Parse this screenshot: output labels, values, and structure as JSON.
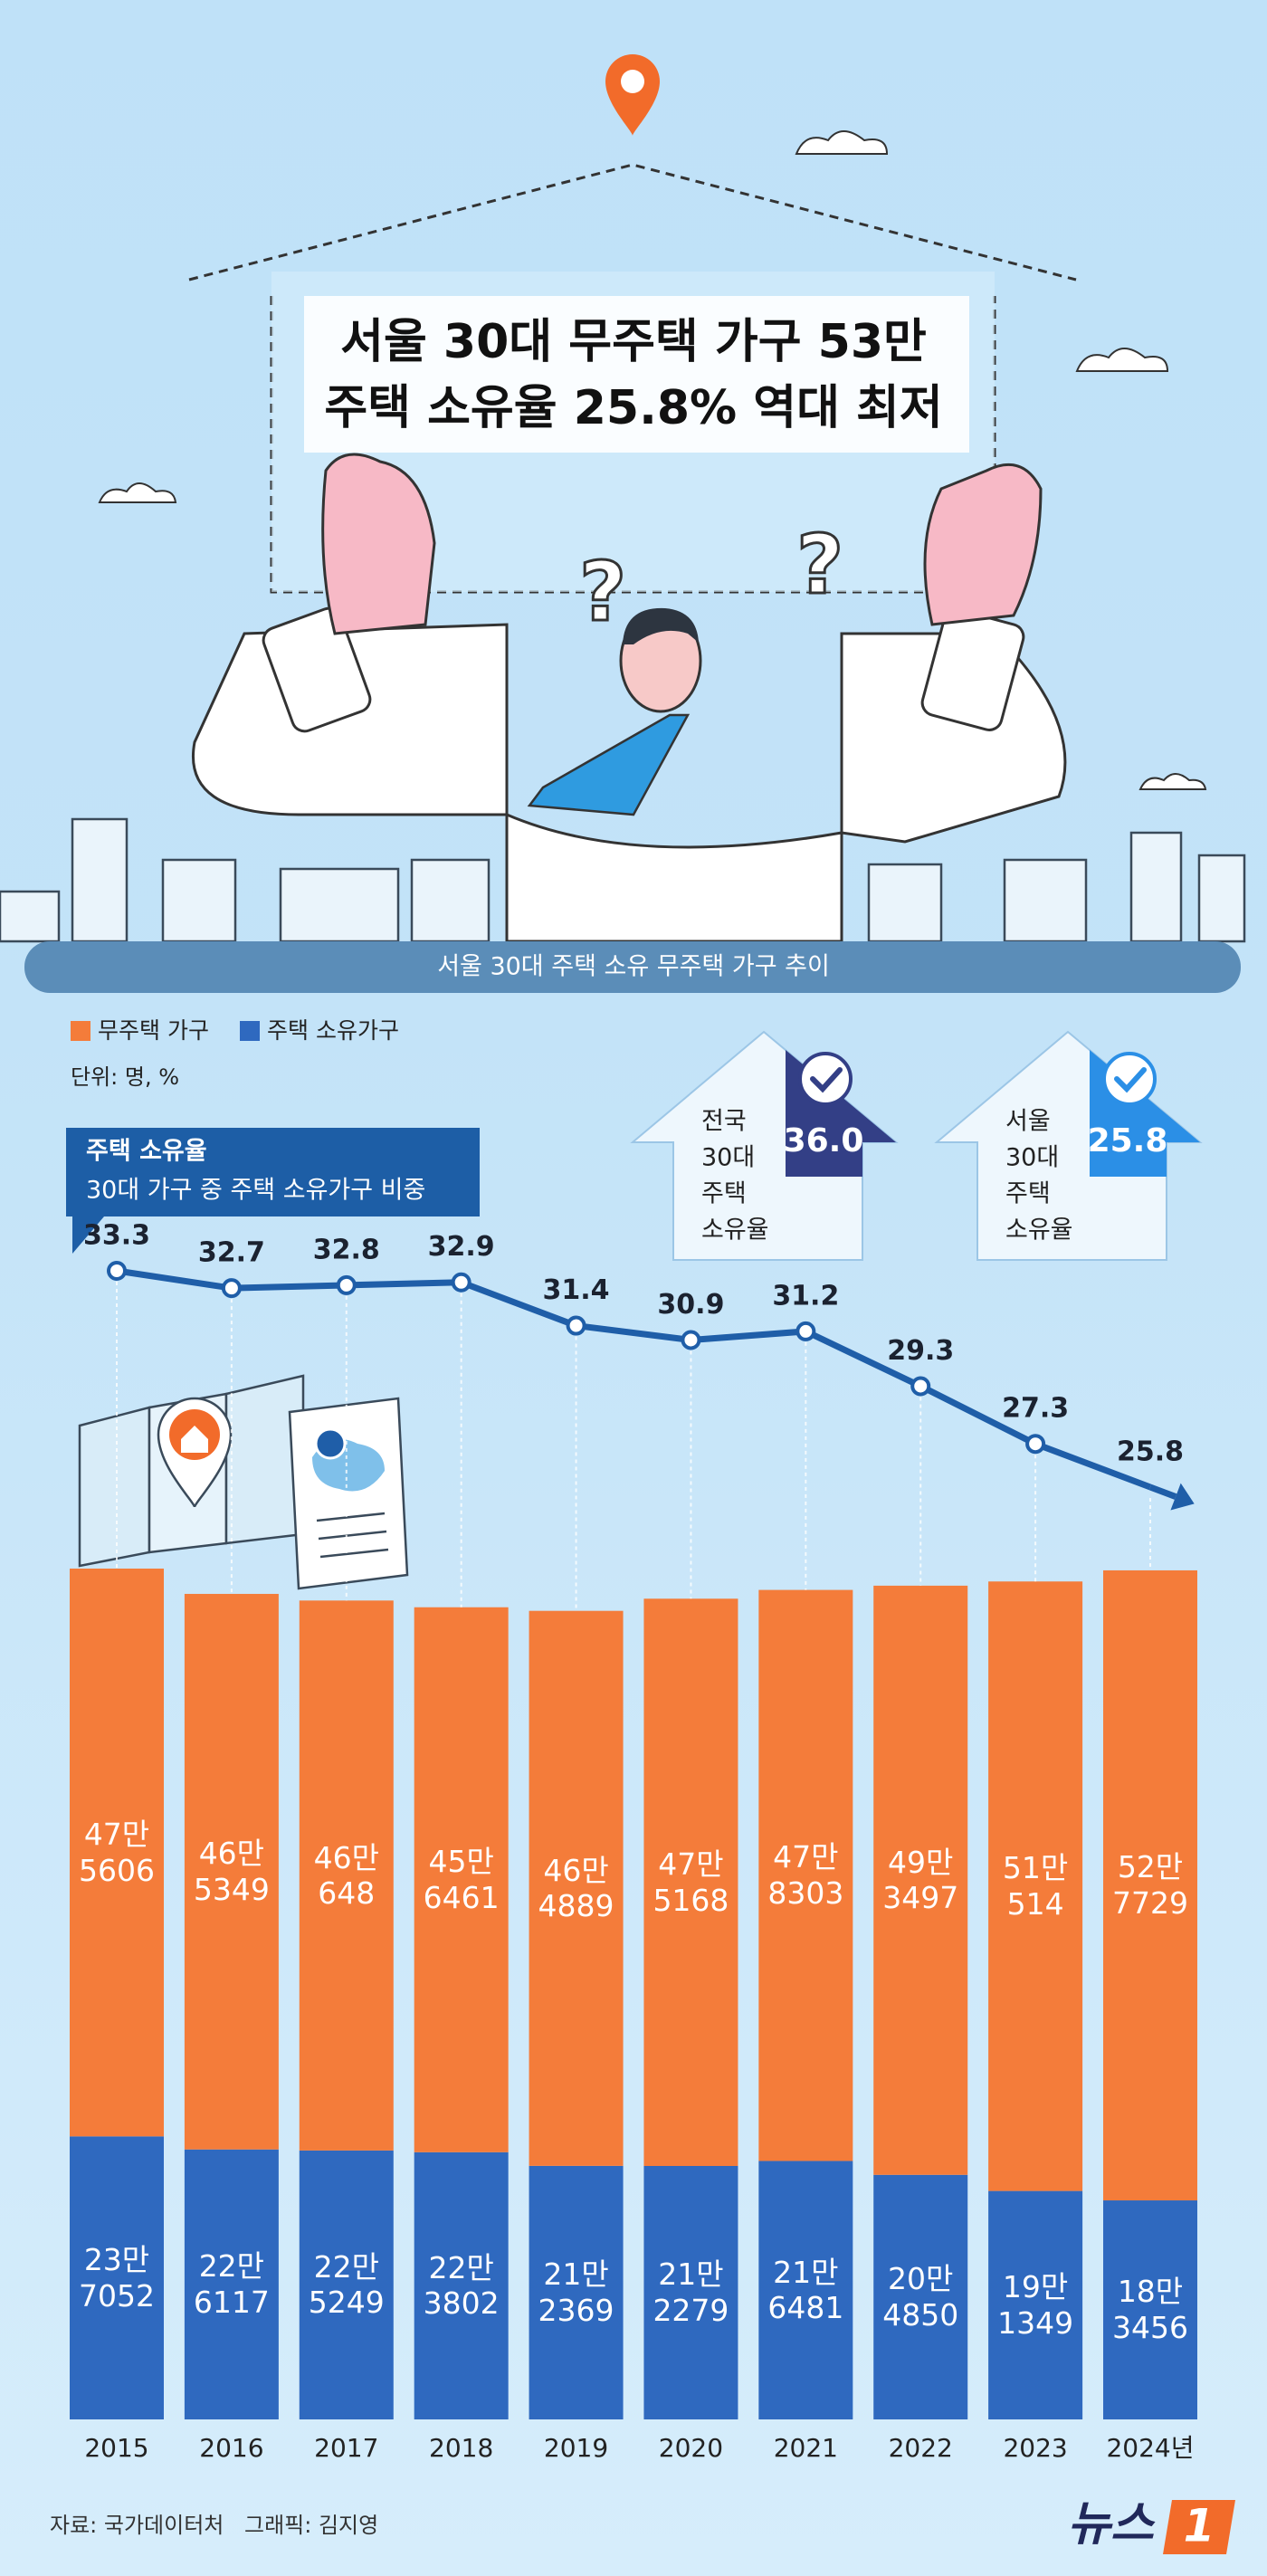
{
  "header": {
    "title_lines": [
      "서울 30대 무주택 가구 53만",
      "주택 소유율 25.8% 역대 최저"
    ]
  },
  "chart_data": {
    "type": "bar",
    "title": "서울 30대 주택 소유 무주택 가구 추이",
    "unit": "단위: 명, %",
    "stacked": true,
    "categories": [
      "2015",
      "2016",
      "2017",
      "2018",
      "2019",
      "2020",
      "2021",
      "2022",
      "2023",
      "2024년"
    ],
    "series": [
      {
        "name": "무주택 가구",
        "color": "#f47c3a",
        "values": [
          475606,
          465349,
          460648,
          456461,
          464889,
          475168,
          478303,
          493497,
          510514,
          527729
        ],
        "value_labels": [
          "47만\n5606",
          "46만\n5349",
          "46만\n648",
          "45만\n6461",
          "46만\n4889",
          "47만\n5168",
          "47만\n8303",
          "49만\n3497",
          "51만\n514",
          "52만\n7729"
        ]
      },
      {
        "name": "주택 소유가구",
        "color": "#2f69bf",
        "values": [
          237052,
          226117,
          225249,
          223802,
          212369,
          212279,
          216481,
          204850,
          191349,
          183456
        ],
        "value_labels": [
          "23만\n7052",
          "22만\n6117",
          "22만\n5249",
          "22만\n3802",
          "21만\n2369",
          "21만\n2279",
          "21만\n6481",
          "20만\n4850",
          "19만\n1349",
          "18만\n3456"
        ]
      }
    ],
    "line": {
      "name": "주택 소유율",
      "description": "30대 가구 중 주택 소유가구 비중",
      "color": "#1f5ea8",
      "values": [
        33.3,
        32.7,
        32.8,
        32.9,
        31.4,
        30.9,
        31.2,
        29.3,
        27.3,
        25.8
      ]
    }
  },
  "callouts": [
    {
      "label": [
        "전국",
        "30대",
        "주택",
        "소유율"
      ],
      "value": "36.0",
      "color": "#333f86"
    },
    {
      "label": [
        "서울",
        "30대",
        "주택",
        "소유율"
      ],
      "value": "25.8",
      "color": "#2b8fe6"
    }
  ],
  "footer": {
    "source": "자료: 국가데이터처",
    "credit": "그래픽: 김지영",
    "logo": "뉴스",
    "logo_mark": "1"
  }
}
